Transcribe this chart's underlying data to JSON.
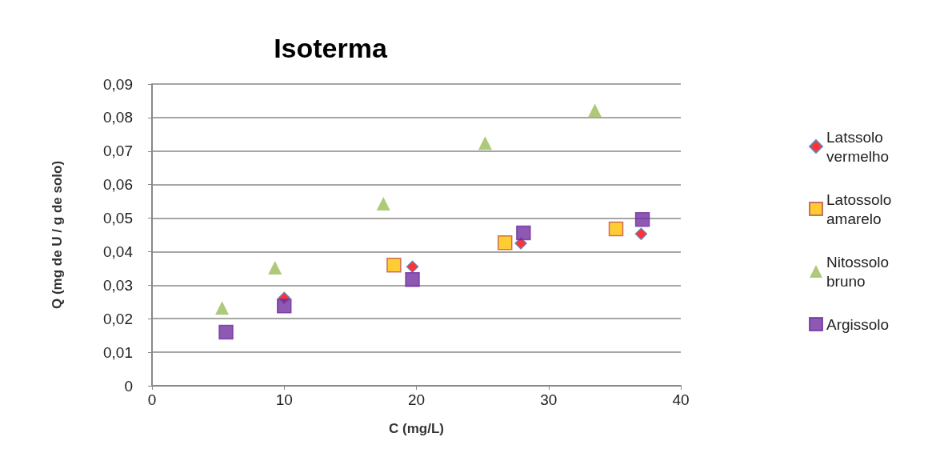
{
  "chart_data": {
    "type": "scatter",
    "title": "Isoterma",
    "xlabel": "C (mg/L)",
    "ylabel": "Q (mg de U / g de solo)",
    "xlim": [
      0,
      40
    ],
    "xticks": [
      0,
      10,
      20,
      30,
      40
    ],
    "ylim": [
      0,
      0.09
    ],
    "yticks": [
      0,
      {
        "value": 0.01,
        "label": "0,01"
      },
      {
        "value": 0.02,
        "label": "0,02"
      },
      {
        "value": 0.03,
        "label": "0,03"
      },
      {
        "value": 0.04,
        "label": "0,04"
      },
      {
        "value": 0.05,
        "label": "0,05"
      },
      {
        "value": 0.06,
        "label": "0,06"
      },
      {
        "value": 0.07,
        "label": "0,07"
      },
      {
        "value": 0.08,
        "label": "0,08"
      },
      {
        "value": 0.09,
        "label": "0,09"
      }
    ],
    "grid": "y",
    "legend": "right",
    "series": [
      {
        "name": "Latssolo vermelho",
        "color": "#ff0000",
        "marker": "diamond",
        "x": [
          10.0,
          19.7,
          27.9,
          37.0
        ],
        "values": [
          0.0262,
          0.0355,
          0.0425,
          0.0453
        ]
      },
      {
        "name": "Latossolo amarelo",
        "color": "#ffc000",
        "marker": "square",
        "x": [
          18.3,
          26.7,
          35.1
        ],
        "values": [
          0.036,
          0.0427,
          0.0468
        ]
      },
      {
        "name": "Nitossolo bruno",
        "color": "#9bbb59",
        "marker": "triangle",
        "x": [
          5.3,
          9.3,
          17.5,
          25.2,
          33.5
        ],
        "values": [
          0.0232,
          0.0352,
          0.0543,
          0.0724,
          0.0821
        ]
      },
      {
        "name": "Argissolo",
        "color": "#7030a0",
        "marker": "square",
        "x": [
          5.6,
          10.0,
          19.7,
          28.1,
          37.1
        ],
        "values": [
          0.016,
          0.0238,
          0.0317,
          0.0456,
          0.0496
        ]
      }
    ]
  }
}
